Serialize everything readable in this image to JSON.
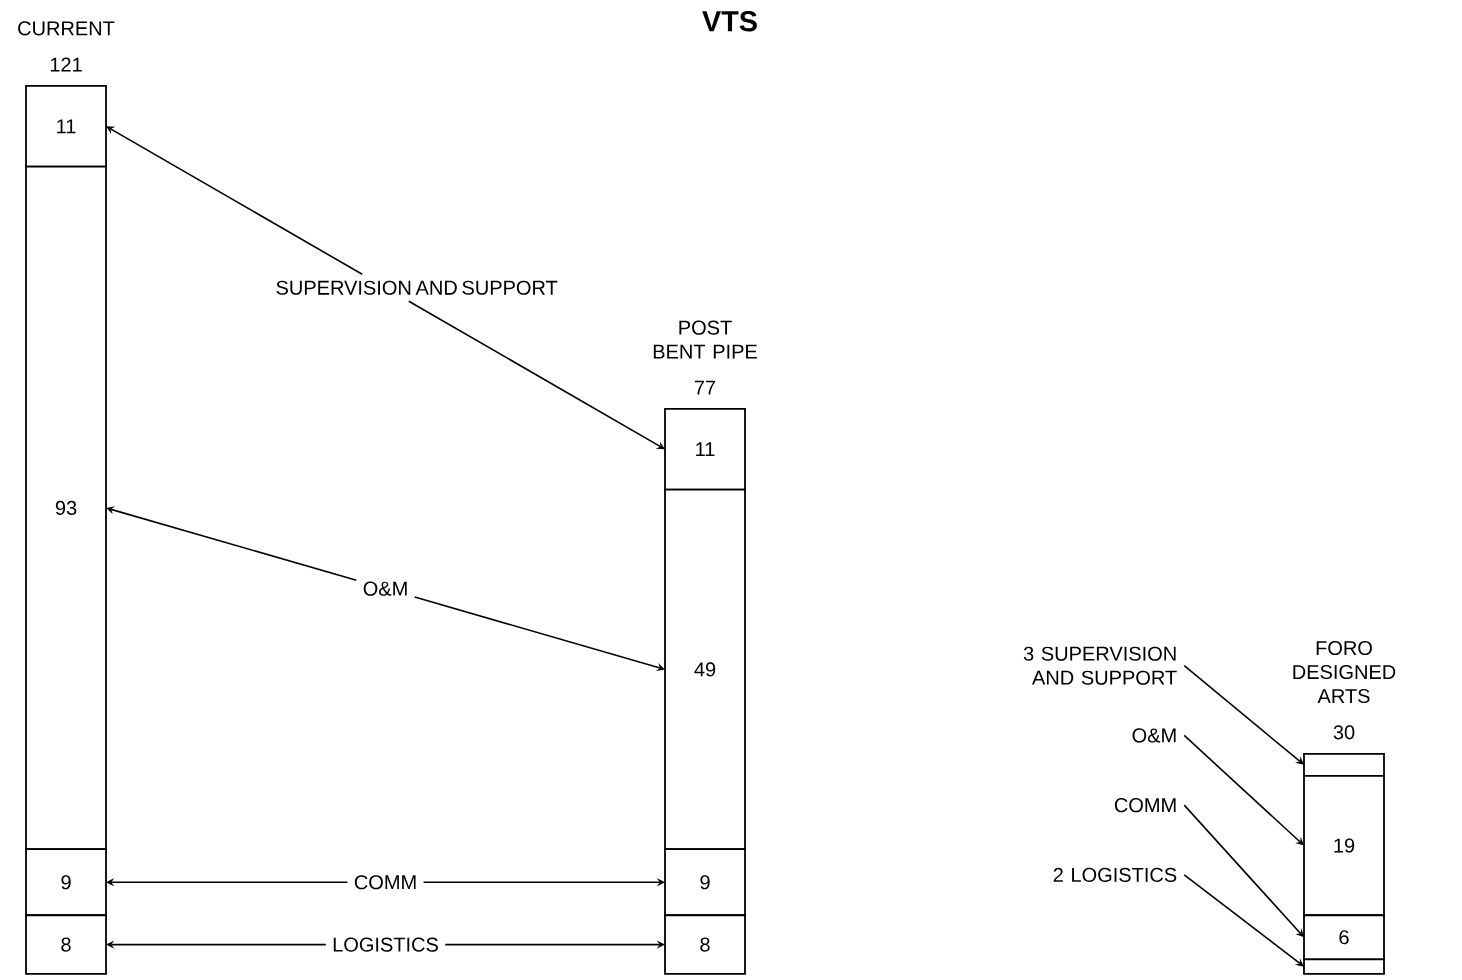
{
  "chart_data": {
    "type": "bar",
    "title": "VTS",
    "stacked": true,
    "categories": [
      "CURRENT",
      "POST BENT PIPE",
      "FORO DESIGNED ARTS"
    ],
    "series": [
      {
        "name": "LOGISTICS",
        "color": "#ffffff",
        "values": [
          8,
          8,
          2
        ],
        "value_labels": [
          "8",
          "8",
          null
        ]
      },
      {
        "name": "COMM",
        "color": "#ffffff",
        "values": [
          9,
          9,
          6
        ],
        "value_labels": [
          "9",
          "9",
          "6"
        ]
      },
      {
        "name": "O&M",
        "color": "#ffffff",
        "values": [
          93,
          49,
          19
        ],
        "value_labels": [
          "93",
          "49",
          "19"
        ]
      },
      {
        "name": "SUPERVISION AND SUPPORT",
        "color": "#ffffff",
        "values": [
          11,
          11,
          3
        ],
        "value_labels": [
          "11",
          "11",
          null
        ]
      }
    ],
    "totals": [
      "121",
      "77",
      "30"
    ],
    "annotations": [
      "3 SUPERVISION AND SUPPORT",
      "O&M",
      "COMM",
      "2 LOGISTICS"
    ]
  }
}
